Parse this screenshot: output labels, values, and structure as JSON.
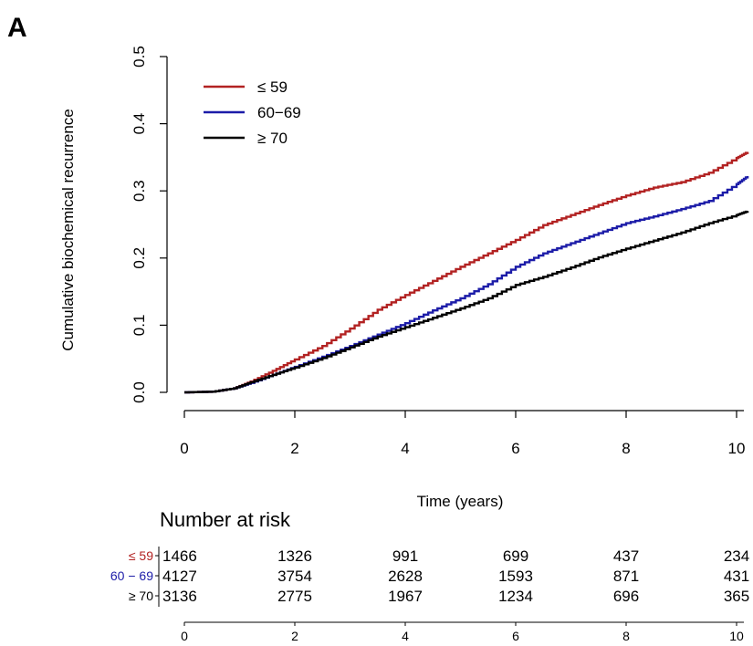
{
  "chart_data": {
    "type": "line",
    "panel_label": "A",
    "ylabel": "Cumulative biochemical recurrence",
    "xlabel": "Time (years)",
    "xlim": [
      0,
      10
    ],
    "ylim": [
      0,
      0.5
    ],
    "x_ticks": [
      "0",
      "2",
      "4",
      "6",
      "8",
      "10"
    ],
    "y_ticks": [
      "0.0",
      "0.1",
      "0.2",
      "0.3",
      "0.4",
      "0.5"
    ],
    "grid": false,
    "legend_position": "top-left",
    "series": [
      {
        "name": "≤ 59",
        "color": "#b22222",
        "x": [
          0,
          0.5,
          0.9,
          1.2,
          1.6,
          2.0,
          2.5,
          3.0,
          3.5,
          4.0,
          4.5,
          5.0,
          5.5,
          6.0,
          6.5,
          7.0,
          7.5,
          8.0,
          8.5,
          9.0,
          9.5,
          10.0,
          10.2
        ],
        "y": [
          0,
          0.001,
          0.006,
          0.016,
          0.032,
          0.049,
          0.069,
          0.095,
          0.123,
          0.145,
          0.166,
          0.187,
          0.207,
          0.227,
          0.249,
          0.264,
          0.279,
          0.293,
          0.305,
          0.313,
          0.327,
          0.349,
          0.358
        ]
      },
      {
        "name": "60−69",
        "color": "#1c1ca8",
        "x": [
          0,
          0.5,
          0.9,
          1.2,
          1.6,
          2.0,
          2.5,
          3.0,
          3.5,
          4.0,
          4.5,
          5.0,
          5.5,
          6.0,
          6.5,
          7.0,
          7.5,
          8.0,
          8.5,
          9.0,
          9.5,
          10.0,
          10.2
        ],
        "y": [
          0,
          0.001,
          0.006,
          0.014,
          0.026,
          0.038,
          0.053,
          0.069,
          0.086,
          0.103,
          0.122,
          0.14,
          0.161,
          0.187,
          0.207,
          0.222,
          0.237,
          0.252,
          0.262,
          0.273,
          0.285,
          0.31,
          0.322
        ]
      },
      {
        "name": "≥ 70",
        "color": "#000000",
        "x": [
          0,
          0.5,
          0.9,
          1.2,
          1.6,
          2.0,
          2.5,
          3.0,
          3.5,
          4.0,
          4.5,
          5.0,
          5.5,
          6.0,
          6.5,
          7.0,
          7.5,
          8.0,
          8.5,
          9.0,
          9.5,
          10.0,
          10.2
        ],
        "y": [
          0,
          0.001,
          0.006,
          0.015,
          0.026,
          0.037,
          0.051,
          0.067,
          0.083,
          0.097,
          0.111,
          0.125,
          0.14,
          0.16,
          0.172,
          0.186,
          0.201,
          0.214,
          0.226,
          0.238,
          0.252,
          0.264,
          0.27
        ]
      }
    ],
    "risk_table": {
      "title": "Number at risk",
      "time_points": [
        "0",
        "2",
        "4",
        "6",
        "8",
        "10"
      ],
      "rows": [
        {
          "label": "≤ 59",
          "color": "#b22222",
          "values": [
            "1466",
            "1326",
            "991",
            "699",
            "437",
            "234"
          ]
        },
        {
          "label": "60 − 69",
          "color": "#1c1ca8",
          "values": [
            "4127",
            "3754",
            "2628",
            "1593",
            "871",
            "431"
          ]
        },
        {
          "label": "≥ 70",
          "color": "#000000",
          "values": [
            "3136",
            "2775",
            "1967",
            "1234",
            "696",
            "365"
          ]
        }
      ]
    }
  }
}
